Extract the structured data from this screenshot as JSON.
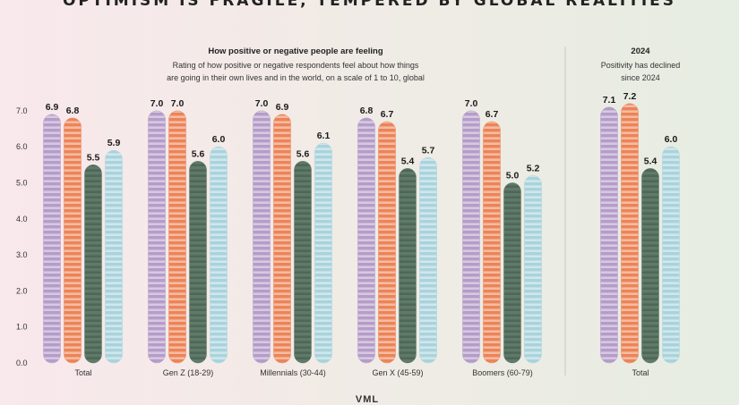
{
  "page": {
    "title": "OPTIMISM IS FRAGILE, TEMPERED BY GLOBAL REALITIES",
    "footer_mark": "VML"
  },
  "left_header": {
    "title": "How positive or negative people are feeling",
    "subtitle_line1": "Rating of how positive or negative respondents feel about how things",
    "subtitle_line2": "are going in their own lives and in the world, on a scale of 1 to 10, global"
  },
  "right_header": {
    "title": "2024",
    "subtitle_line1": "Positivity has declined",
    "subtitle_line2": "since 2024"
  },
  "colors": {
    "purple": "#b59cc9",
    "orange": "#ec8457",
    "green": "#5f7a69",
    "blue": "#a9d3dc"
  },
  "chart_data": {
    "type": "bar",
    "ylim": [
      0,
      7.5
    ],
    "yticks": [
      "0.0",
      "1.0",
      "2.0",
      "3.0",
      "4.0",
      "5.0",
      "6.0",
      "7.0"
    ],
    "grid": false,
    "panels": [
      {
        "name": "main",
        "categories": [
          "Total",
          "Gen Z (18-29)",
          "Millennials (30-44)",
          "Gen X (45-59)",
          "Boomers (60-79)"
        ],
        "series": [
          {
            "name": "series-1",
            "color": "#b59cc9",
            "values": [
              6.9,
              7.0,
              7.0,
              6.8,
              7.0
            ]
          },
          {
            "name": "series-2",
            "color": "#ec8457",
            "values": [
              6.8,
              7.0,
              6.9,
              6.7,
              6.7
            ]
          },
          {
            "name": "series-3",
            "color": "#5f7a69",
            "values": [
              5.5,
              5.6,
              5.6,
              5.4,
              5.0
            ]
          },
          {
            "name": "series-4",
            "color": "#a9d3dc",
            "values": [
              5.9,
              6.0,
              6.1,
              5.7,
              5.2
            ]
          }
        ],
        "labels": [
          [
            "6.9",
            "6.8",
            "5.5",
            "5.9"
          ],
          [
            "7.0",
            "7.0",
            "5.6",
            "6.0"
          ],
          [
            "7.0",
            "6.9",
            "5.6",
            "6.1"
          ],
          [
            "6.8",
            "6.7",
            "5.4",
            "5.7"
          ],
          [
            "7.0",
            "6.7",
            "5.0",
            "5.2"
          ]
        ]
      },
      {
        "name": "2024",
        "categories": [
          "Total"
        ],
        "series": [
          {
            "name": "series-1",
            "color": "#b59cc9",
            "values": [
              7.1
            ]
          },
          {
            "name": "series-2",
            "color": "#ec8457",
            "values": [
              7.2
            ]
          },
          {
            "name": "series-3",
            "color": "#5f7a69",
            "values": [
              5.4
            ]
          },
          {
            "name": "series-4",
            "color": "#a9d3dc",
            "values": [
              6.0
            ]
          }
        ],
        "labels": [
          [
            "7.1",
            "7.2",
            "5.4",
            "6.0"
          ]
        ]
      }
    ]
  }
}
